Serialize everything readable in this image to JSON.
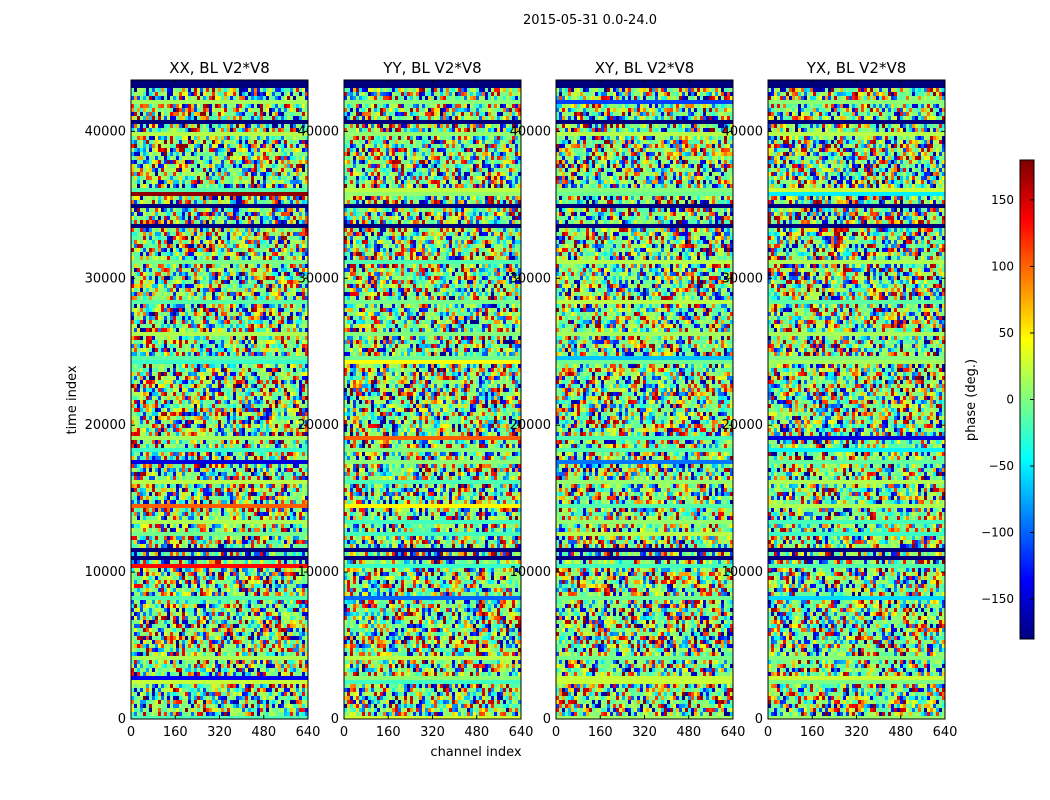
{
  "figure": {
    "suptitle": "2015-05-31 0.0-24.0"
  },
  "chart_data": {
    "type": "heatmap",
    "xlabel": "channel index",
    "ylabel": "time index",
    "colorbar_label": "phase (deg.)",
    "colormap": "jet",
    "colormap_stops": [
      "#00007f",
      "#0000ff",
      "#007fff",
      "#00ffff",
      "#7fff7f",
      "#ffff00",
      "#ff7f00",
      "#ff0000",
      "#7f0000"
    ],
    "value_range": [
      -180,
      180
    ],
    "colorbar_ticks": [
      {
        "value": 150,
        "label": "150"
      },
      {
        "value": 100,
        "label": "100"
      },
      {
        "value": 50,
        "label": "50"
      },
      {
        "value": 0,
        "label": "0"
      },
      {
        "value": -50,
        "label": "−50"
      },
      {
        "value": -100,
        "label": "−100"
      },
      {
        "value": -150,
        "label": "−150"
      }
    ],
    "xlim": [
      0,
      640
    ],
    "ylim": [
      0,
      43500
    ],
    "x_ticks": [
      0,
      160,
      320,
      480,
      640
    ],
    "y_ticks": [
      0,
      10000,
      20000,
      30000,
      40000
    ],
    "panels": [
      {
        "title": "XX, BL V2*V8"
      },
      {
        "title": "YY, BL V2*V8"
      },
      {
        "title": "XY, BL V2*V8"
      },
      {
        "title": "YX, BL V2*V8"
      }
    ],
    "grid": false
  }
}
